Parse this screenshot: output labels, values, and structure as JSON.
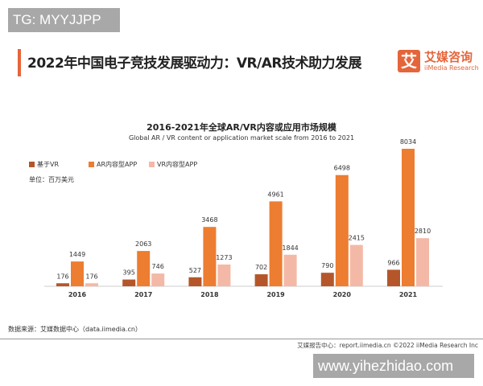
{
  "watermarks": {
    "top": "TG: MYYJJPP",
    "bottom": "www.yihezhidao.com"
  },
  "header": {
    "title": "2022年中国电子竞技发展驱动力：VR/AR技术助力发展",
    "logo_glyph": "艾",
    "brand": "艾媒咨询",
    "brand_en": "iiMedia Research"
  },
  "chart_data": {
    "type": "bar",
    "title": "2016-2021年全球AR/VR内容或应用市场规模",
    "subtitle": "Global AR / VR content or application market scale from 2016 to 2021",
    "unit": "单位：百万美元",
    "categories": [
      "2016",
      "2017",
      "2018",
      "2019",
      "2020",
      "2021"
    ],
    "series": [
      {
        "name": "基于VR",
        "color": "#b5562a",
        "values": [
          176,
          395,
          527,
          702,
          790,
          966
        ]
      },
      {
        "name": "AR内容型APP",
        "color": "#ed7d31",
        "values": [
          1449,
          2063,
          3468,
          4961,
          6498,
          8034
        ]
      },
      {
        "name": "VR内容型APP",
        "color": "#f4b9a6",
        "values": [
          176,
          746,
          1273,
          1844,
          2415,
          2810
        ]
      }
    ],
    "legend": "top-left",
    "grid": false
  },
  "footer": {
    "source": "数据来源：艾媒数据中心（data.iimedia.cn）",
    "credit": "艾媒报告中心：report.iimedia.cn   ©2022  iiMedia Research  Inc"
  }
}
